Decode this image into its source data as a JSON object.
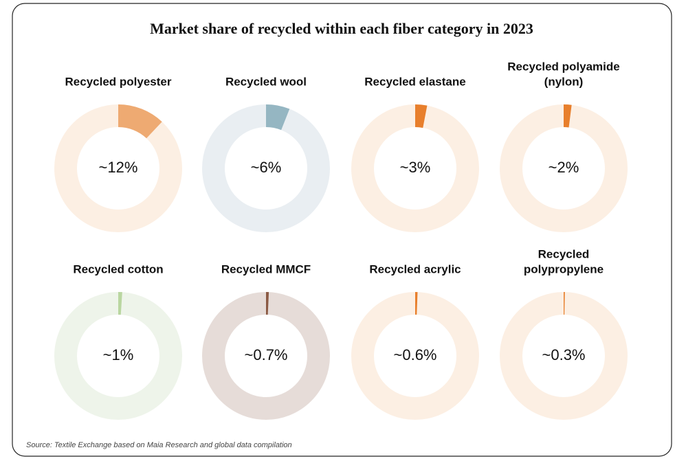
{
  "title": "Market share of recycled within each fiber category in 2023",
  "source": "Source: Textile Exchange based on Maia Research and global data compilation",
  "chart_data": [
    {
      "type": "donut",
      "title": [
        "Recycled polyester"
      ],
      "values": [
        12
      ],
      "value_labels": [
        "~12%"
      ],
      "ylim": [
        0,
        100
      ],
      "color": "#eeaa72",
      "track_color": "#fcefe3"
    },
    {
      "type": "donut",
      "title": [
        "Recycled wool"
      ],
      "values": [
        6
      ],
      "value_labels": [
        "~6%"
      ],
      "ylim": [
        0,
        100
      ],
      "color": "#95b6c2",
      "track_color": "#e9eef2"
    },
    {
      "type": "donut",
      "title": [
        "Recycled elastane"
      ],
      "values": [
        3
      ],
      "value_labels": [
        "~3%"
      ],
      "ylim": [
        0,
        100
      ],
      "color": "#e87f2c",
      "track_color": "#fcefe3"
    },
    {
      "type": "donut",
      "title": [
        "Recycled polyamide",
        "(nylon)"
      ],
      "values": [
        2
      ],
      "value_labels": [
        "~2%"
      ],
      "ylim": [
        0,
        100
      ],
      "color": "#e87f2c",
      "track_color": "#fcefe3"
    },
    {
      "type": "donut",
      "title": [
        "Recycled cotton"
      ],
      "values": [
        1
      ],
      "value_labels": [
        "~1%"
      ],
      "ylim": [
        0,
        100
      ],
      "color": "#b9d6a0",
      "track_color": "#eef4ea"
    },
    {
      "type": "donut",
      "title": [
        "Recycled MMCF"
      ],
      "values": [
        0.7
      ],
      "value_labels": [
        "~0.7%"
      ],
      "ylim": [
        0,
        100
      ],
      "color": "#8b5a44",
      "track_color": "#e6dcd8"
    },
    {
      "type": "donut",
      "title": [
        "Recycled acrylic"
      ],
      "values": [
        0.6
      ],
      "value_labels": [
        "~0.6%"
      ],
      "ylim": [
        0,
        100
      ],
      "color": "#e87f2c",
      "track_color": "#fcefe3"
    },
    {
      "type": "donut",
      "title": [
        "Recycled",
        "polypropylene"
      ],
      "values": [
        0.3
      ],
      "value_labels": [
        "~0.3%"
      ],
      "ylim": [
        0,
        100
      ],
      "color": "#e87f2c",
      "track_color": "#fcefe3"
    }
  ]
}
